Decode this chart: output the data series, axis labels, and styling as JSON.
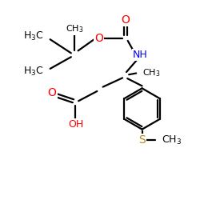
{
  "bg_color": "#ffffff",
  "atom_colors": {
    "O": "#ff0000",
    "N": "#0000ff",
    "S": "#b8860b",
    "C": "#000000",
    "H": "#000000"
  },
  "bond_color": "#000000",
  "bond_width": 1.6,
  "font_size": 9,
  "font_size_sub": 7
}
